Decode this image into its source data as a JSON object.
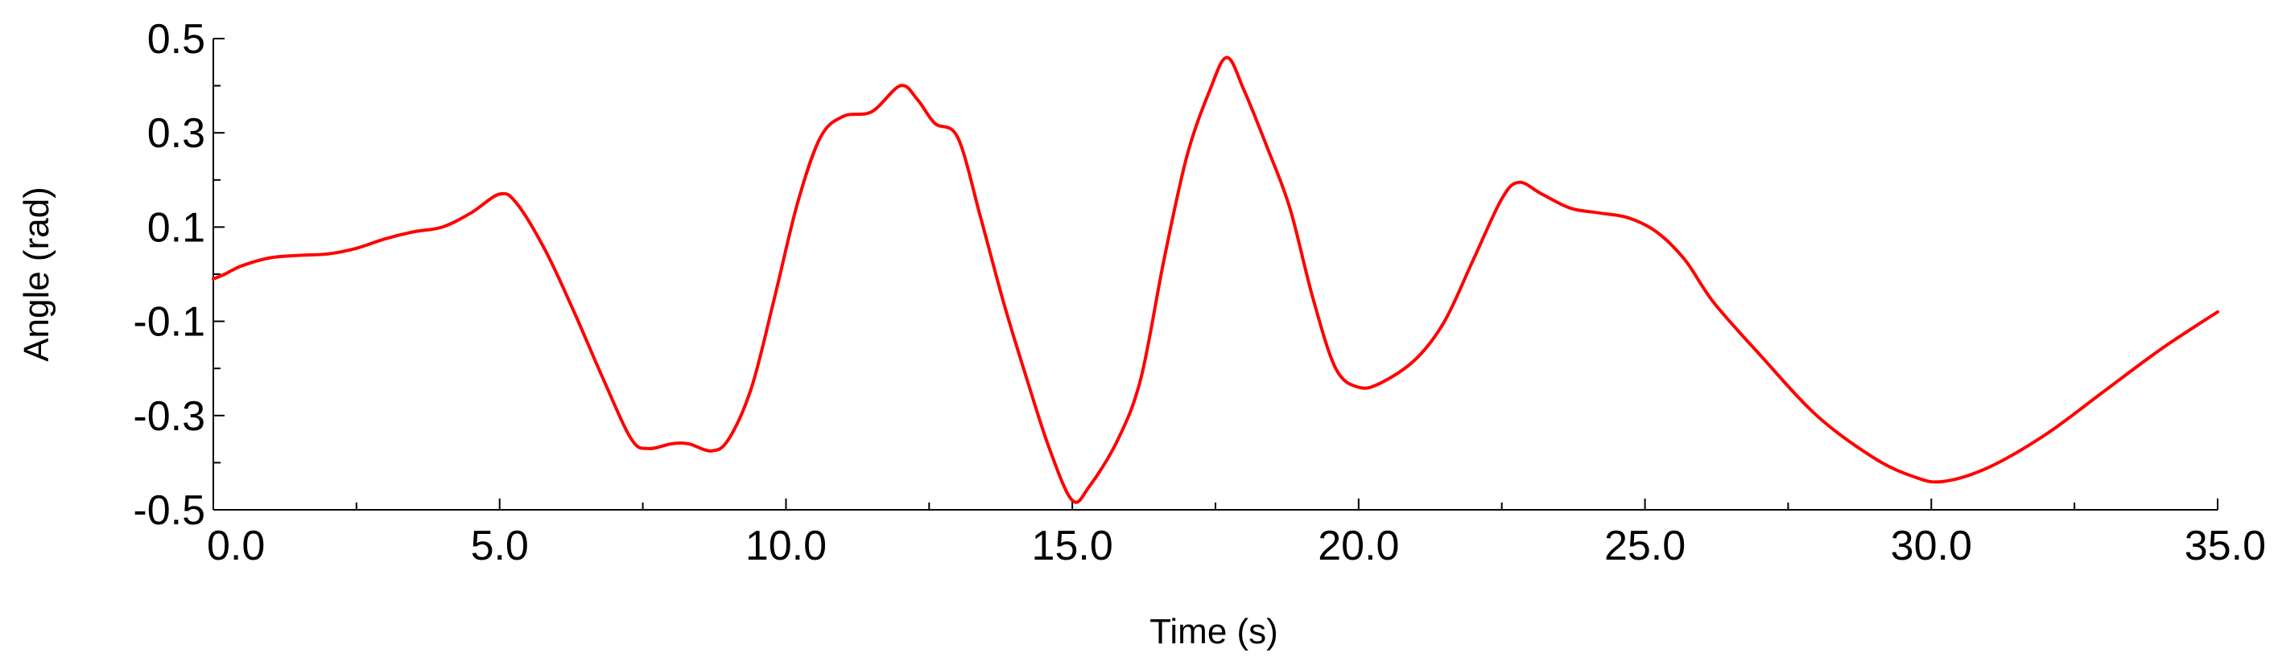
{
  "chart_data": {
    "type": "line",
    "xlabel": "Time (s)",
    "ylabel": "Angle (rad)",
    "xlim": [
      0,
      35
    ],
    "ylim": [
      -0.5,
      0.5
    ],
    "grid": false,
    "x_ticks": [
      "0.0",
      "5.0",
      "10.0",
      "15.0",
      "20.0",
      "25.0",
      "30.0",
      "35.0"
    ],
    "y_ticks": [
      "0.5",
      "0.3",
      "0.1",
      "-0.1",
      "-0.3",
      "-0.5"
    ],
    "series": [
      {
        "color": "#ff0000",
        "points": [
          [
            0.0,
            -0.01
          ],
          [
            0.2,
            0.0
          ],
          [
            0.5,
            0.018
          ],
          [
            1.0,
            0.035
          ],
          [
            1.5,
            0.04
          ],
          [
            2.0,
            0.043
          ],
          [
            2.5,
            0.055
          ],
          [
            3.0,
            0.075
          ],
          [
            3.5,
            0.09
          ],
          [
            4.0,
            0.1
          ],
          [
            4.5,
            0.13
          ],
          [
            5.0,
            0.17
          ],
          [
            5.3,
            0.15
          ],
          [
            5.8,
            0.05
          ],
          [
            6.3,
            -0.08
          ],
          [
            6.8,
            -0.22
          ],
          [
            7.3,
            -0.35
          ],
          [
            7.6,
            -0.37
          ],
          [
            8.0,
            -0.36
          ],
          [
            8.3,
            -0.36
          ],
          [
            8.7,
            -0.375
          ],
          [
            9.0,
            -0.35
          ],
          [
            9.4,
            -0.24
          ],
          [
            9.8,
            -0.05
          ],
          [
            10.2,
            0.15
          ],
          [
            10.6,
            0.29
          ],
          [
            11.0,
            0.335
          ],
          [
            11.5,
            0.345
          ],
          [
            12.0,
            0.4
          ],
          [
            12.3,
            0.37
          ],
          [
            12.6,
            0.32
          ],
          [
            13.0,
            0.29
          ],
          [
            13.4,
            0.12
          ],
          [
            13.8,
            -0.06
          ],
          [
            14.2,
            -0.22
          ],
          [
            14.6,
            -0.37
          ],
          [
            15.0,
            -0.48
          ],
          [
            15.3,
            -0.45
          ],
          [
            15.8,
            -0.35
          ],
          [
            16.2,
            -0.22
          ],
          [
            16.6,
            0.03
          ],
          [
            17.0,
            0.25
          ],
          [
            17.4,
            0.39
          ],
          [
            17.7,
            0.46
          ],
          [
            18.0,
            0.39
          ],
          [
            18.4,
            0.27
          ],
          [
            18.8,
            0.14
          ],
          [
            19.2,
            -0.05
          ],
          [
            19.6,
            -0.2
          ],
          [
            20.0,
            -0.24
          ],
          [
            20.4,
            -0.23
          ],
          [
            21.0,
            -0.18
          ],
          [
            21.5,
            -0.1
          ],
          [
            22.0,
            0.03
          ],
          [
            22.5,
            0.16
          ],
          [
            22.8,
            0.195
          ],
          [
            23.2,
            0.17
          ],
          [
            23.7,
            0.14
          ],
          [
            24.2,
            0.13
          ],
          [
            24.7,
            0.12
          ],
          [
            25.2,
            0.09
          ],
          [
            25.7,
            0.03
          ],
          [
            26.2,
            -0.06
          ],
          [
            27.0,
            -0.17
          ],
          [
            28.0,
            -0.3
          ],
          [
            29.0,
            -0.39
          ],
          [
            29.7,
            -0.43
          ],
          [
            30.2,
            -0.44
          ],
          [
            31.0,
            -0.41
          ],
          [
            32.0,
            -0.34
          ],
          [
            33.0,
            -0.25
          ],
          [
            34.0,
            -0.16
          ],
          [
            35.0,
            -0.08
          ]
        ]
      }
    ]
  }
}
